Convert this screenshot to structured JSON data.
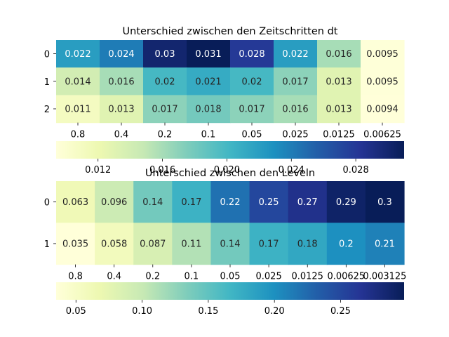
{
  "chart_data": [
    {
      "type": "heatmap",
      "title": "Unterschied zwischen den Zeitschritten dt",
      "x": [
        "0.8",
        "0.4",
        "0.2",
        "0.1",
        "0.05",
        "0.025",
        "0.0125",
        "0.00625"
      ],
      "y": [
        "0",
        "1",
        "2"
      ],
      "values": [
        [
          0.022,
          0.024,
          0.03,
          0.031,
          0.028,
          0.022,
          0.016,
          0.0095
        ],
        [
          0.014,
          0.016,
          0.02,
          0.021,
          0.02,
          0.017,
          0.013,
          0.0095
        ],
        [
          0.011,
          0.013,
          0.017,
          0.018,
          0.017,
          0.016,
          0.013,
          0.0094
        ]
      ],
      "annotations": [
        [
          "0.022",
          "0.024",
          "0.03",
          "0.031",
          "0.028",
          "0.022",
          "0.016",
          "0.0095"
        ],
        [
          "0.014",
          "0.016",
          "0.02",
          "0.021",
          "0.02",
          "0.017",
          "0.013",
          "0.0095"
        ],
        [
          "0.011",
          "0.013",
          "0.017",
          "0.018",
          "0.017",
          "0.016",
          "0.013",
          "0.0094"
        ]
      ],
      "colormap": "YlGnBu",
      "colorbar": {
        "orientation": "horizontal",
        "range": [
          0.0094,
          0.031
        ],
        "ticks": [
          0.012,
          0.016,
          0.02,
          0.024,
          0.028
        ],
        "tick_labels": [
          "0.012",
          "0.016",
          "0.020",
          "0.024",
          "0.028"
        ]
      }
    },
    {
      "type": "heatmap",
      "title": "Unterschied zwischen den Leveln",
      "x": [
        "0.8",
        "0.4",
        "0.2",
        "0.1",
        "0.05",
        "0.025",
        "0.0125",
        "0.00625",
        "0.003125"
      ],
      "y": [
        "0",
        "1"
      ],
      "values": [
        [
          0.063,
          0.096,
          0.14,
          0.17,
          0.22,
          0.25,
          0.27,
          0.29,
          0.3
        ],
        [
          0.035,
          0.058,
          0.087,
          0.11,
          0.14,
          0.17,
          0.18,
          0.2,
          0.21
        ]
      ],
      "annotations": [
        [
          "0.063",
          "0.096",
          "0.14",
          "0.17",
          "0.22",
          "0.25",
          "0.27",
          "0.29",
          "0.3"
        ],
        [
          "0.035",
          "0.058",
          "0.087",
          "0.11",
          "0.14",
          "0.17",
          "0.18",
          "0.2",
          "0.21"
        ]
      ],
      "colormap": "YlGnBu",
      "colorbar": {
        "orientation": "horizontal",
        "range": [
          0.035,
          0.298
        ],
        "ticks": [
          0.05,
          0.1,
          0.15,
          0.2,
          0.25
        ],
        "tick_labels": [
          "0.05",
          "0.10",
          "0.15",
          "0.20",
          "0.25"
        ]
      }
    }
  ]
}
